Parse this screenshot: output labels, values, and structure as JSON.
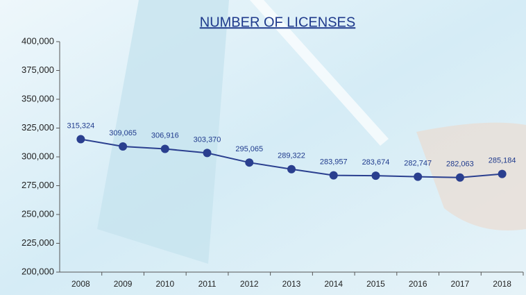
{
  "chart_data": {
    "type": "line",
    "title": "NUMBER OF LICENSES",
    "categories": [
      "2008",
      "2009",
      "2010",
      "2011",
      "2012",
      "2013",
      "2014",
      "2015",
      "2016",
      "2017",
      "2018"
    ],
    "values": [
      315324,
      309065,
      306916,
      303370,
      295065,
      289322,
      283957,
      283674,
      282747,
      282063,
      285184
    ],
    "value_labels": [
      "315,324",
      "309,065",
      "306,916",
      "303,370",
      "295,065",
      "289,322",
      "283,957",
      "283,674",
      "282,747",
      "282,063",
      "285,184"
    ],
    "color": "#2a3f8f",
    "ylim": [
      200000,
      400000
    ],
    "yticks": [
      {
        "value": 200000,
        "label": "200,000"
      },
      {
        "value": 225000,
        "label": "225,000"
      },
      {
        "value": 250000,
        "label": "250,000"
      },
      {
        "value": 275000,
        "label": "275,000"
      },
      {
        "value": 300000,
        "label": "300,000"
      },
      {
        "value": 325000,
        "label": "325,000"
      },
      {
        "value": 350000,
        "label": "350,000"
      },
      {
        "value": 375000,
        "label": "375,000"
      },
      {
        "value": 400000,
        "label": "400,000"
      }
    ]
  }
}
